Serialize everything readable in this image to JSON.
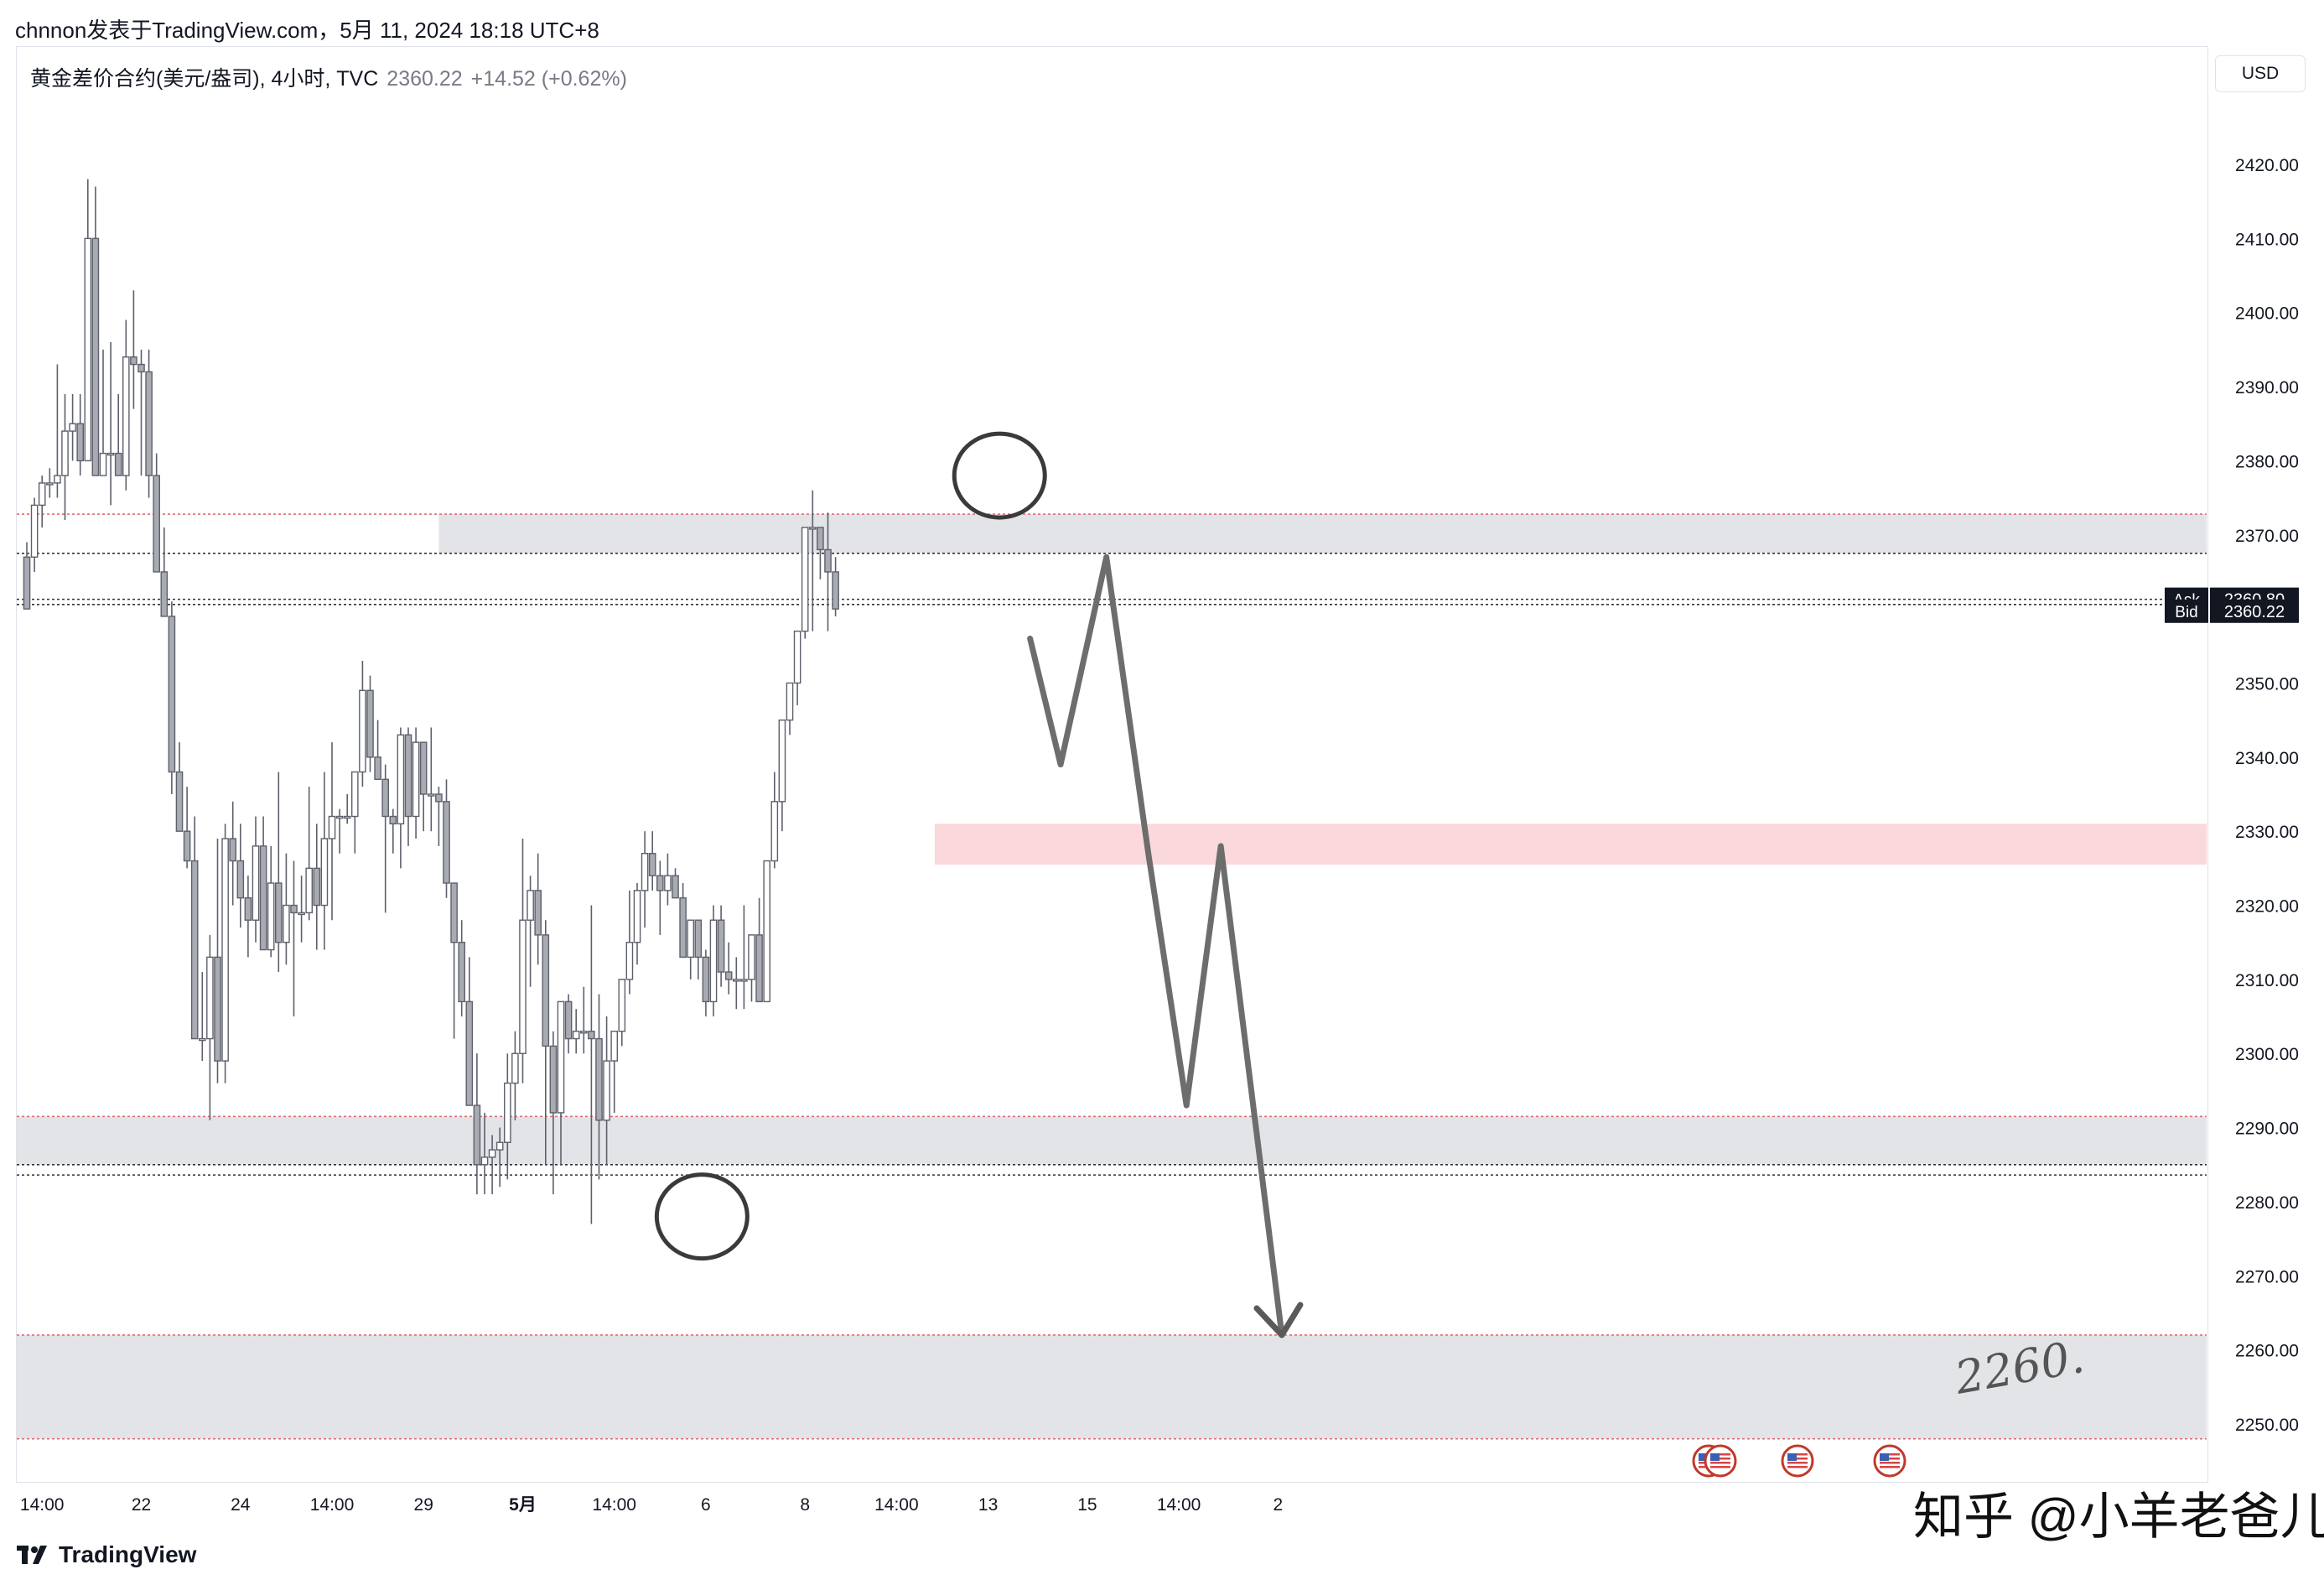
{
  "header": {
    "caption": "chnnon发表于TradingView.com，5月 11, 2024 18:18 UTC+8"
  },
  "legend": {
    "symbol": "黄金差价合约(美元/盎司), 4小时, TVC",
    "price": "2360.22",
    "change": "+14.52 (+0.62%)"
  },
  "currency_button": "USD",
  "brand": {
    "name": "TradingView",
    "icon": "tradingview-logo-icon"
  },
  "watermark": "知乎 @小羊老爸儿",
  "chart_data": {
    "type": "candlestick",
    "ylim": [
      2242,
      2435
    ],
    "y_ticks": [
      2420,
      2410,
      2400,
      2390,
      2380,
      2370,
      2350,
      2340,
      2330,
      2320,
      2310,
      2300,
      2290,
      2280,
      2270,
      2260,
      2250
    ],
    "y_tick_labels": [
      "2420.00",
      "2410.00",
      "2400.00",
      "2390.00",
      "2380.00",
      "2370.00",
      "2350.00",
      "2340.00",
      "2330.00",
      "2320.00",
      "2310.00",
      "2300.00",
      "2290.00",
      "2280.00",
      "2270.00",
      "2260.00",
      "2250.00"
    ],
    "x_labels": [
      {
        "label": "14:00",
        "bar": 2
      },
      {
        "label": "22",
        "bar": 15
      },
      {
        "label": "24",
        "bar": 28
      },
      {
        "label": "14:00",
        "bar": 40
      },
      {
        "label": "29",
        "bar": 52
      },
      {
        "label": "5月",
        "bar": 65
      },
      {
        "label": "14:00",
        "bar": 77
      },
      {
        "label": "6",
        "bar": 89
      },
      {
        "label": "8",
        "bar": 102
      },
      {
        "label": "14:00",
        "bar": 114
      },
      {
        "label": "13",
        "bar": 126
      },
      {
        "label": "15",
        "bar": 139
      },
      {
        "label": "14:00",
        "bar": 151
      },
      {
        "label": "2",
        "bar": 164
      }
    ],
    "bars": [
      [
        2367,
        2369,
        2361,
        2360
      ],
      [
        2367,
        2375,
        2365,
        2374
      ],
      [
        2374,
        2378,
        2371,
        2377
      ],
      [
        2377,
        2379,
        2375,
        2377
      ],
      [
        2377,
        2393,
        2375,
        2378
      ],
      [
        2378,
        2389,
        2372,
        2384
      ],
      [
        2384,
        2389,
        2380,
        2385
      ],
      [
        2385,
        2389,
        2378,
        2380
      ],
      [
        2380,
        2418,
        2380,
        2410
      ],
      [
        2410,
        2417,
        2380,
        2378
      ],
      [
        2378,
        2395,
        2378,
        2381
      ],
      [
        2381,
        2396,
        2374,
        2381
      ],
      [
        2381,
        2389,
        2378,
        2378
      ],
      [
        2378,
        2399,
        2376,
        2394
      ],
      [
        2394,
        2403,
        2387,
        2393
      ],
      [
        2393,
        2395,
        2378,
        2392
      ],
      [
        2392,
        2395,
        2375,
        2378
      ],
      [
        2378,
        2381,
        2365,
        2365
      ],
      [
        2365,
        2371,
        2359,
        2359
      ],
      [
        2359,
        2361,
        2335,
        2338
      ],
      [
        2338,
        2342,
        2331,
        2330
      ],
      [
        2330,
        2336,
        2325,
        2326
      ],
      [
        2326,
        2332,
        2302,
        2302
      ],
      [
        2302,
        2311,
        2299,
        2302
      ],
      [
        2302,
        2316,
        2291,
        2313
      ],
      [
        2313,
        2329,
        2296,
        2299
      ],
      [
        2299,
        2331,
        2296,
        2329
      ],
      [
        2329,
        2334,
        2320,
        2326
      ],
      [
        2326,
        2331,
        2317,
        2321
      ],
      [
        2321,
        2324,
        2313,
        2318
      ],
      [
        2318,
        2332,
        2315,
        2328
      ],
      [
        2328,
        2332,
        2314,
        2314
      ],
      [
        2314,
        2328,
        2313,
        2323
      ],
      [
        2323,
        2338,
        2311,
        2315
      ],
      [
        2315,
        2327,
        2312,
        2320
      ],
      [
        2320,
        2326,
        2305,
        2319
      ],
      [
        2319,
        2324,
        2315,
        2319
      ],
      [
        2319,
        2336,
        2318,
        2325
      ],
      [
        2325,
        2331,
        2314,
        2320
      ],
      [
        2320,
        2338,
        2314,
        2329
      ],
      [
        2329,
        2342,
        2318,
        2332
      ],
      [
        2332,
        2333,
        2327,
        2332
      ],
      [
        2332,
        2335,
        2331,
        2332
      ],
      [
        2332,
        2338,
        2327,
        2338
      ],
      [
        2338,
        2353,
        2336,
        2349
      ],
      [
        2349,
        2351,
        2338,
        2340
      ],
      [
        2340,
        2345,
        2338,
        2337
      ],
      [
        2337,
        2339,
        2319,
        2332
      ],
      [
        2332,
        2333,
        2327,
        2331
      ],
      [
        2331,
        2344,
        2325,
        2343
      ],
      [
        2343,
        2344,
        2328,
        2332
      ],
      [
        2332,
        2344,
        2329,
        2342
      ],
      [
        2342,
        2342,
        2330,
        2335
      ],
      [
        2335,
        2344,
        2330,
        2335
      ],
      [
        2335,
        2336,
        2328,
        2334
      ],
      [
        2334,
        2337,
        2321,
        2323
      ],
      [
        2323,
        2323,
        2302,
        2315
      ],
      [
        2315,
        2318,
        2305,
        2307
      ],
      [
        2307,
        2313,
        2299,
        2293
      ],
      [
        2293,
        2300,
        2281,
        2285
      ],
      [
        2285,
        2292,
        2281,
        2286
      ],
      [
        2286,
        2289,
        2281,
        2287
      ],
      [
        2287,
        2290,
        2282,
        2288
      ],
      [
        2288,
        2300,
        2283,
        2296
      ],
      [
        2296,
        2303,
        2291,
        2300
      ],
      [
        2300,
        2329,
        2296,
        2318
      ],
      [
        2318,
        2324,
        2309,
        2322
      ],
      [
        2322,
        2327,
        2312,
        2316
      ],
      [
        2316,
        2318,
        2285,
        2301
      ],
      [
        2301,
        2303,
        2281,
        2292
      ],
      [
        2292,
        2298,
        2285,
        2307
      ],
      [
        2307,
        2308,
        2300,
        2302
      ],
      [
        2302,
        2306,
        2300,
        2303
      ],
      [
        2303,
        2309,
        2300,
        2303
      ],
      [
        2303,
        2320,
        2277,
        2302
      ],
      [
        2302,
        2308,
        2283,
        2291
      ],
      [
        2291,
        2305,
        2285,
        2299
      ],
      [
        2299,
        2301,
        2292,
        2303
      ],
      [
        2303,
        2309,
        2301,
        2310
      ],
      [
        2310,
        2322,
        2308,
        2315
      ],
      [
        2315,
        2323,
        2312,
        2322
      ],
      [
        2322,
        2330,
        2317,
        2327
      ],
      [
        2327,
        2330,
        2322,
        2324
      ],
      [
        2324,
        2326,
        2316,
        2322
      ],
      [
        2322,
        2327,
        2320,
        2324
      ],
      [
        2324,
        2325,
        2321,
        2321
      ],
      [
        2321,
        2323,
        2314,
        2313
      ],
      [
        2313,
        2318,
        2310,
        2318
      ],
      [
        2318,
        2317,
        2310,
        2313
      ],
      [
        2313,
        2314,
        2305,
        2307
      ],
      [
        2307,
        2320,
        2305,
        2318
      ],
      [
        2318,
        2320,
        2309,
        2311
      ],
      [
        2311,
        2315,
        2308,
        2310
      ],
      [
        2310,
        2313,
        2306,
        2310
      ],
      [
        2310,
        2320,
        2306,
        2310
      ],
      [
        2310,
        2315,
        2307,
        2316
      ],
      [
        2316,
        2321,
        2307,
        2307
      ],
      [
        2307,
        2316,
        2307,
        2326
      ],
      [
        2326,
        2338,
        2325,
        2334
      ],
      [
        2334,
        2342,
        2330,
        2345
      ],
      [
        2345,
        2349,
        2343,
        2350
      ],
      [
        2350,
        2356,
        2347,
        2357
      ],
      [
        2357,
        2371,
        2356,
        2371
      ],
      [
        2371,
        2376,
        2357,
        2371
      ],
      [
        2371,
        2370,
        2364,
        2368
      ],
      [
        2368,
        2373,
        2357,
        2365
      ],
      [
        2365,
        2367,
        2359,
        2360
      ]
    ],
    "zones": [
      {
        "kind": "resistance",
        "from": 2367.5,
        "to": 2372.8,
        "color": "#e3e4e7",
        "start_bar": 54
      },
      {
        "kind": "supply",
        "from": 2325.5,
        "to": 2331.0,
        "color": "#fbd8db",
        "start_bar": 119
      },
      {
        "kind": "support",
        "from": 2285.0,
        "to": 2291.5,
        "color": "#e3e4e7",
        "start_bar": 0
      },
      {
        "kind": "target",
        "from": 2248.0,
        "to": 2262.0,
        "color": "#e3e4e7",
        "start_bar": 0
      }
    ],
    "lines": [
      2372.8,
      2367.5,
      2361.3,
      2360.6,
      2291.5,
      2285.0,
      2283.6,
      2262.0,
      2248.0
    ],
    "price_tags": [
      {
        "label": "Ask",
        "value": "2360.80",
        "price": 2361.3
      },
      {
        "label": "Bid",
        "value": "2360.22",
        "price": 2359.7
      }
    ],
    "drawing_path_prices": [
      [
        131.5,
        2356
      ],
      [
        135.5,
        2339
      ],
      [
        141.5,
        2367
      ],
      [
        147.0,
        2327
      ],
      [
        152.0,
        2293
      ],
      [
        156.5,
        2328
      ],
      [
        164.5,
        2262
      ]
    ],
    "circles": [
      {
        "bar": 127.5,
        "price": 2378
      },
      {
        "bar": 88.5,
        "price": 2278
      }
    ],
    "annotation": "2260."
  }
}
